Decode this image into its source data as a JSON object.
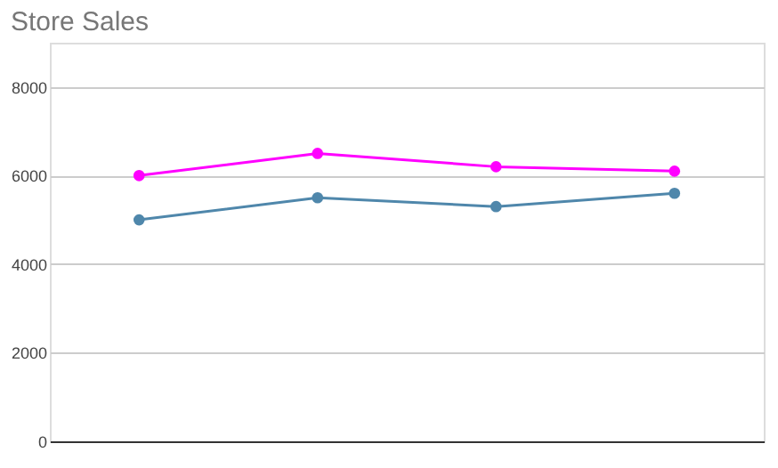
{
  "chart_data": {
    "type": "line",
    "title": "Store Sales",
    "categories": [
      null,
      null,
      null,
      null
    ],
    "series": [
      {
        "color": "#ff00ff",
        "values": [
          6000,
          6500,
          6200,
          6100
        ]
      },
      {
        "color": "#4f87ab",
        "values": [
          5000,
          5500,
          5300,
          5600
        ]
      }
    ],
    "ylim": [
      0,
      9000
    ],
    "yticks": [
      0,
      2000,
      4000,
      6000,
      8000
    ],
    "grid": "y",
    "marker": "circle",
    "line_style": "solid",
    "tick_labels": "y"
  }
}
